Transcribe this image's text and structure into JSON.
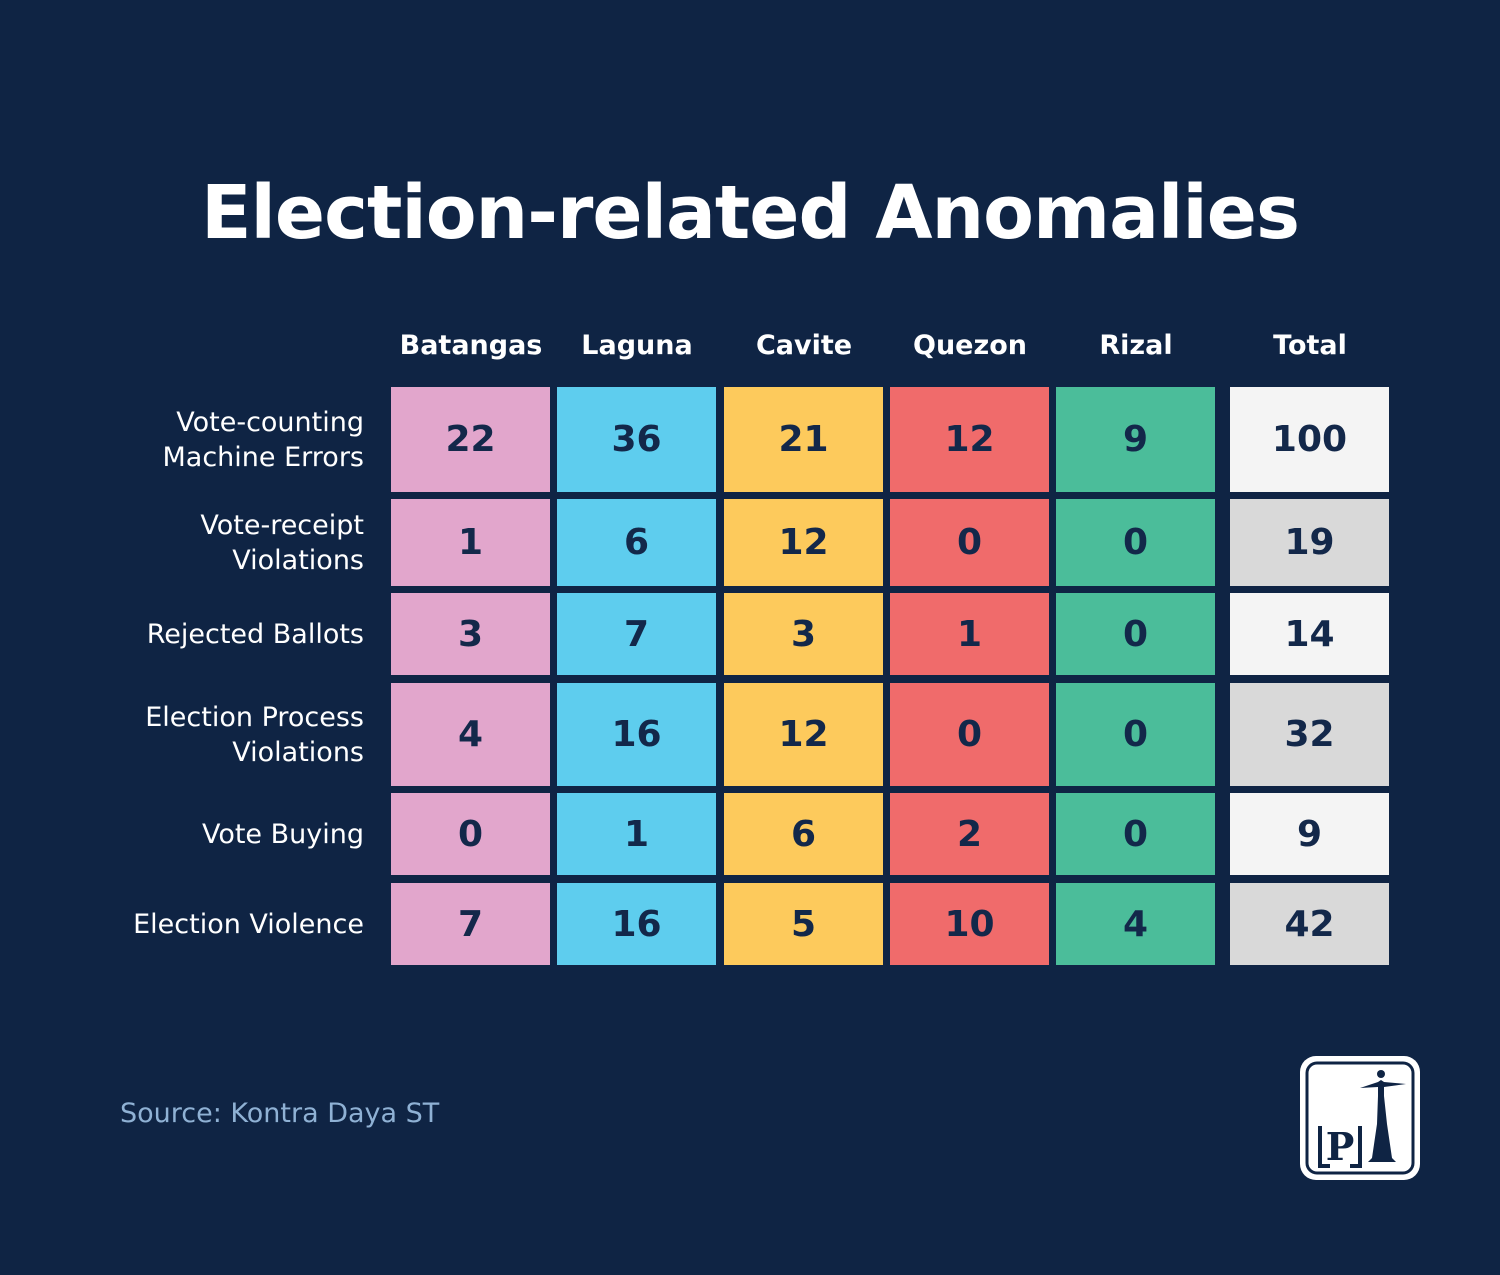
{
  "chart_data": {
    "type": "table",
    "title": "Election-related Anomalies",
    "columns": [
      "Batangas",
      "Laguna",
      "Cavite",
      "Quezon",
      "Rizal",
      "Total"
    ],
    "rows": [
      {
        "label": "Vote-counting Machine Errors",
        "values": [
          22,
          36,
          21,
          12,
          9,
          100
        ]
      },
      {
        "label": "Vote-receipt Violations",
        "values": [
          1,
          6,
          12,
          0,
          0,
          19
        ]
      },
      {
        "label": "Rejected Ballots",
        "values": [
          3,
          7,
          3,
          1,
          0,
          14
        ]
      },
      {
        "label": "Election Process Violations",
        "values": [
          4,
          16,
          12,
          0,
          0,
          32
        ]
      },
      {
        "label": "Vote Buying",
        "values": [
          0,
          1,
          6,
          2,
          0,
          9
        ]
      },
      {
        "label": "Election Violence",
        "values": [
          7,
          16,
          5,
          10,
          4,
          42
        ]
      }
    ],
    "column_colors": [
      "#e2a6cc",
      "#5ecdee",
      "#fdca5c",
      "#f06b6b",
      "#4bbd9a"
    ],
    "total_colors": [
      "#f4f4f4",
      "#d9d9d9"
    ]
  },
  "source": "Source: Kontra Daya ST",
  "logo": {
    "icon": "p-monument-logo",
    "letter": "P"
  },
  "colors": {
    "background": "#0f2444",
    "cell_text": "#13284a",
    "source_text": "#8fb1d4"
  }
}
